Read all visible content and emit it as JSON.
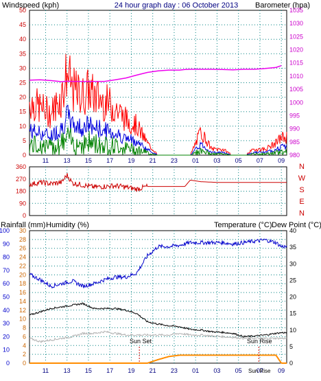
{
  "header": {
    "left": "Windspeed (kph)",
    "center": "24 hour graph day : 06 October 2013",
    "right": "Barometer (hpa)"
  },
  "colors": {
    "wind_gust": "#ff0000",
    "wind_avg": "#0000dd",
    "wind_low": "#008000",
    "barometer": "#ee00ee",
    "direction": "#cc0000",
    "rain": "#ff8c00",
    "humidity": "#0000cc",
    "temperature": "#000000",
    "dewpoint": "#b0b0b0",
    "grid": "#008080",
    "frame": "#000000"
  },
  "x_ticks": [
    "11",
    "13",
    "15",
    "17",
    "19",
    "21",
    "23",
    "01",
    "03",
    "05",
    "07",
    "09"
  ],
  "wind_panel": {
    "left_axis": [
      "0",
      "5",
      "10",
      "15",
      "20",
      "25",
      "30",
      "35",
      "40",
      "45",
      "50"
    ],
    "right_axis": [
      "980",
      "985",
      "990",
      "995",
      "1000",
      "1005",
      "1010",
      "1015",
      "1020",
      "1025",
      "1030",
      "1035"
    ]
  },
  "dir_panel": {
    "left_axis": [
      "0",
      "90",
      "180",
      "270",
      "360"
    ],
    "compass": [
      "N",
      "W",
      "S",
      "E",
      "N"
    ]
  },
  "bottom_panel": {
    "rain_label": "Rainfall (mm)",
    "humidity_label": "Humidity (%)",
    "temp_label": "Temperature (°C)",
    "dew_label": "Dew Point (°C)",
    "humidity_axis": [
      "0",
      "10",
      "20",
      "30",
      "40",
      "50",
      "60",
      "70",
      "80",
      "90",
      "100"
    ],
    "rain_axis": [
      "0",
      "2",
      "4",
      "6",
      "8",
      "10",
      "12",
      "14",
      "16",
      "18",
      "20",
      "22",
      "24",
      "26",
      "28",
      "30"
    ],
    "temp_axis": [
      "0",
      "5",
      "10",
      "15",
      "20",
      "25",
      "30",
      "35",
      "40"
    ],
    "sun_set": "Sun Set",
    "sun_rise": "Sun Rise",
    "sun_extra": "Sun Rise"
  },
  "chart_data": [
    {
      "type": "line",
      "title": "24 hour graph day : 06 October 2013",
      "x_hours": [
        9.5,
        10.5,
        11.5,
        12.5,
        13,
        13.5,
        14.5,
        15,
        15.5,
        16.5,
        17.5,
        18.5,
        19.5,
        20.5,
        21.5,
        22.5,
        23.5,
        0,
        0.5,
        1.5,
        2.5,
        3.5,
        4.5,
        5.5,
        6.5,
        7.5,
        8.5,
        9
      ],
      "series": [
        {
          "name": "Windspeed (kph)",
          "values": [
            9,
            8,
            7,
            10,
            14,
            11,
            10,
            11,
            10,
            9,
            8,
            6,
            5,
            2,
            0,
            0,
            0,
            0,
            0,
            4,
            1,
            1,
            0,
            0,
            1,
            1,
            2,
            3
          ]
        },
        {
          "name": "Barometer (hpa)",
          "values": [
            1008.5,
            1008.6,
            1008.3,
            1007.9,
            1008.1,
            1008.0,
            1008.0,
            1008.0,
            1008.0,
            1008.0,
            1008.6,
            1009.3,
            1010.4,
            1011.4,
            1012.0,
            1012.3,
            1012.3,
            1012.5,
            1012.6,
            1012.6,
            1012.6,
            1012.5,
            1012.4,
            1012.6,
            1012.6,
            1012.9,
            1013.3,
            1014.0
          ]
        }
      ],
      "ylim_left": [
        0,
        50
      ],
      "ylim_right": [
        980,
        1035
      ]
    },
    {
      "type": "line",
      "x_hours": [
        9.5,
        10.5,
        11.5,
        12.5,
        13,
        13.5,
        14.5,
        15.5,
        16.5,
        17.5,
        18.5,
        19.5,
        20,
        20.5,
        22,
        0,
        0.5,
        1.5,
        3,
        5,
        7,
        9
      ],
      "series": [
        {
          "name": "Wind direction",
          "values": [
            230,
            245,
            235,
            245,
            300,
            240,
            225,
            210,
            215,
            220,
            210,
            195,
            205,
            215,
            215,
            215,
            262,
            250,
            245,
            245,
            245,
            245
          ]
        }
      ],
      "ylim": [
        0,
        360
      ]
    },
    {
      "type": "line",
      "x_hours": [
        9.5,
        10.5,
        11.5,
        12.5,
        13.5,
        14.5,
        15.5,
        16.5,
        17.5,
        18.5,
        19.5,
        20.5,
        21.5,
        22.5,
        23.5,
        0.5,
        1.5,
        2.5,
        3.5,
        4.5,
        5.5,
        6.5,
        7.5,
        8.5,
        9
      ],
      "series": [
        {
          "name": "Humidity (%)",
          "values": [
            67,
            63,
            58,
            60,
            62,
            58,
            60,
            63,
            65,
            65,
            68,
            81,
            88,
            88,
            89,
            91,
            91,
            91,
            91,
            90,
            91,
            92,
            93,
            91,
            88
          ]
        },
        {
          "name": "Temperature (°C)",
          "values": [
            14.5,
            15.5,
            16.5,
            17,
            17.5,
            18,
            16.5,
            16.5,
            16.5,
            16,
            15,
            12.5,
            11.8,
            11.3,
            11,
            10.2,
            10,
            9.5,
            9.3,
            9,
            8,
            8.2,
            8.5,
            9,
            9.2
          ]
        },
        {
          "name": "Dew Point (°C)",
          "values": [
            7.5,
            6.5,
            7,
            7.5,
            8,
            9,
            9,
            9.5,
            9,
            8.5,
            8.5,
            8.5,
            8.5,
            8.5,
            9,
            8.5,
            8.5,
            8.2,
            8,
            7.8,
            7.5,
            7.5,
            7.5,
            7.5,
            7.5
          ]
        },
        {
          "name": "Rainfall (mm)",
          "values": [
            0,
            0,
            0,
            0,
            0,
            0,
            0,
            0,
            0,
            0,
            0,
            0,
            0.8,
            1.5,
            1.8,
            1.8,
            1.8,
            1.8,
            1.8,
            1.8,
            1.8,
            1.8,
            1.8,
            1.8,
            0
          ]
        }
      ],
      "ylim_humidity": [
        0,
        100
      ],
      "ylim_rain": [
        0,
        30
      ],
      "ylim_temp": [
        0,
        40
      ]
    }
  ]
}
